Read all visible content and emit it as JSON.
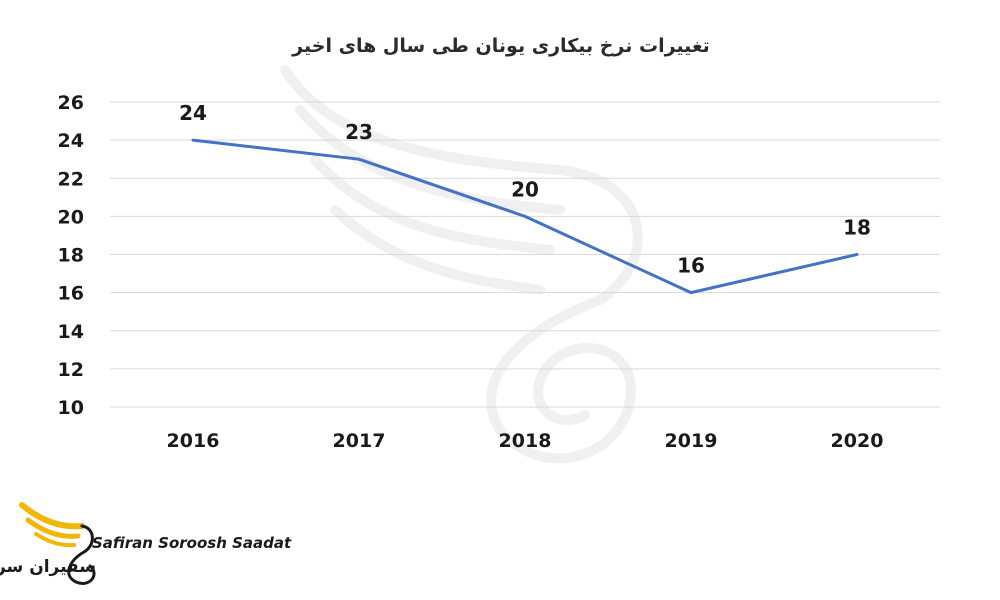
{
  "brand": {
    "name_en": "Safiran Soroosh Saadat",
    "name_fa": "سفیران سروش سعادت",
    "accent_color": "#f2b705"
  },
  "chart_data": {
    "type": "line",
    "title": "تغییرات نرخ بیکاری یونان طی سال های اخیر",
    "categories": [
      "2016",
      "2017",
      "2018",
      "2019",
      "2020"
    ],
    "series": [
      {
        "values": [
          24,
          23,
          20,
          16,
          18
        ],
        "color": "#4472c4"
      }
    ],
    "data_labels": [
      "24",
      "23",
      "20",
      "16",
      "18"
    ],
    "yticks": [
      10,
      12,
      14,
      16,
      18,
      20,
      22,
      24,
      26
    ],
    "ylim": [
      10,
      26
    ],
    "xlabel": "",
    "ylabel": "",
    "grid": true,
    "gridline_color": "#d9d9d9"
  }
}
